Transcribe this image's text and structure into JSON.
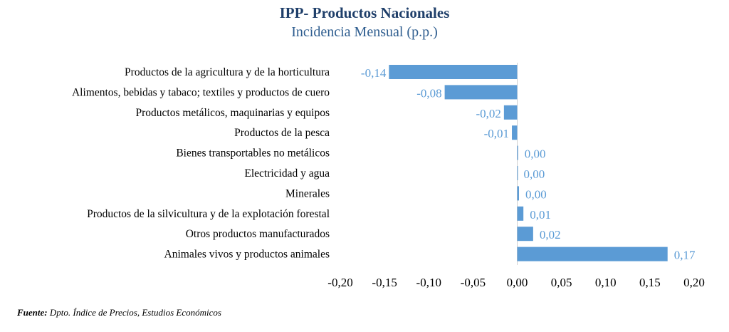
{
  "chart_data": {
    "type": "bar",
    "orientation": "horizontal",
    "title": "IPP- Productos Nacionales",
    "subtitle": "Incidencia Mensual (p.p.)",
    "categories": [
      "Productos de la agricultura y de la horticultura",
      "Alimentos, bebidas y tabaco; textiles y productos de cuero",
      "Productos metálicos, maquinarias y equipos",
      "Productos de la pesca",
      "Bienes transportables no metálicos",
      "Electricidad y agua",
      "Minerales",
      "Productos de la silvicultura y de la explotación forestal",
      "Otros productos manufacturados",
      "Animales vivos y productos animales"
    ],
    "values": [
      -0.145,
      -0.082,
      -0.015,
      -0.006,
      0.001,
      0.0,
      0.002,
      0.007,
      0.018,
      0.17
    ],
    "data_labels": [
      "-0,14",
      "-0,08",
      "-0,02",
      "-0,01",
      "0,00",
      "0,00",
      "0,00",
      "0,01",
      "0,02",
      "0,17"
    ],
    "xlim": [
      -0.2,
      0.2
    ],
    "xticks": [
      "-0,20",
      "-0,15",
      "-0,10",
      "-0,05",
      "0,00",
      "0,05",
      "0,10",
      "0,15",
      "0,20"
    ],
    "grid": false,
    "bar_color": "#5b9bd5",
    "label_color": "#5b9bd5"
  },
  "source": {
    "label": "Fuente:",
    "text": " Dpto. Índice de Precios, Estudios Económicos"
  }
}
